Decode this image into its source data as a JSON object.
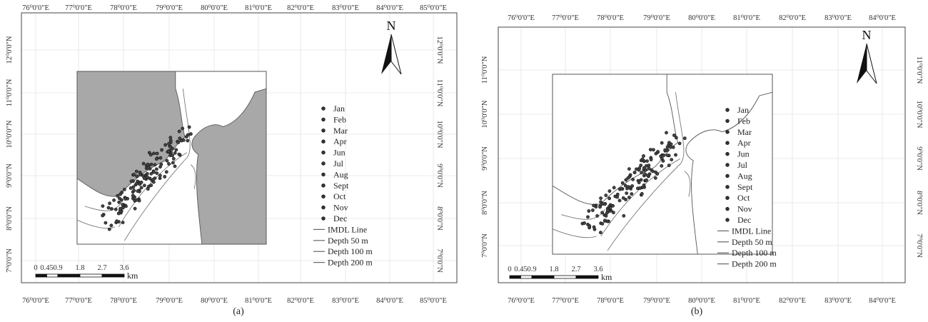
{
  "panels": [
    {
      "caption": "(a)",
      "top_ticks": [
        "76⁰0'0\"E",
        "77⁰0'0\"E",
        "78⁰0'0\"E",
        "79⁰0'0\"E",
        "80⁰0'0\"E",
        "81⁰0'0\"E",
        "82⁰0'0\"E",
        "83⁰0'0\"E",
        "84⁰0'0\"E",
        "85⁰0'0\"E"
      ],
      "bottom_ticks": [
        "76⁰0'0\"E",
        "77⁰0'0\"E",
        "78⁰0'0\"E",
        "79⁰0'0\"E",
        "80⁰0'0\"E",
        "81⁰0'0\"E",
        "82⁰0'0\"E",
        "83⁰0'0\"E",
        "84⁰0'0\"E",
        "85⁰0'0\"E"
      ],
      "left_ticks": [
        "12⁰0'0\"N",
        "11⁰0'0\"N",
        "10⁰0'0\"N",
        "9⁰0'0\"N",
        "8⁰0'0\"N",
        "7⁰0'0\"N"
      ],
      "right_ticks": [
        "12⁰0'0\"N",
        "11⁰0'0\"N",
        "10⁰0'0\"N",
        "9⁰0'0\"N",
        "8⁰0'0\"N",
        "7⁰0'0\"N"
      ],
      "north_label": "N",
      "scale_numbers": [
        "0",
        "0.45",
        "0.9",
        "1.8",
        "2.7",
        "3.6"
      ],
      "scale_unit": "km",
      "land_filled": true,
      "legend": {
        "months": [
          "Jan",
          "Feb",
          "Mar",
          "Apr",
          "Jun",
          "Jul",
          "Aug",
          "Sept",
          "Oct",
          "Nov",
          "Dec"
        ],
        "lines": [
          "IMDL Line",
          "Depth 50 m",
          "Depth 100 m",
          "Depth 200 m"
        ]
      }
    },
    {
      "caption": "(b)",
      "top_ticks": [
        "76⁰0'0\"E",
        "77⁰0'0\"E",
        "78⁰0'0\"E",
        "79⁰0'0\"E",
        "80⁰0'0\"E",
        "81⁰0'0\"E",
        "82⁰0'0\"E",
        "83⁰0'0\"E",
        "84⁰0'0\"E"
      ],
      "bottom_ticks": [
        "76⁰0'0\"E",
        "77⁰0'0\"E",
        "78⁰0'0\"E",
        "79⁰0'0\"E",
        "80⁰0'0\"E",
        "81⁰0'0\"E",
        "82⁰0'0\"E",
        "83⁰0'0\"E",
        "84⁰0'0\"E"
      ],
      "left_ticks": [
        "11⁰0'0\"N",
        "10⁰0'0\"N",
        "9⁰0'0\"N",
        "8⁰0'0\"N",
        "7⁰0'0\"N"
      ],
      "right_ticks": [
        "11⁰0'0\"N",
        "10⁰0'0\"N",
        "9⁰0'0\"N",
        "8⁰0'0\"N",
        "7⁰0'0\"N"
      ],
      "north_label": "N",
      "scale_numbers": [
        "0",
        "0.45",
        "0.9",
        "1.8",
        "2.7",
        "3.6"
      ],
      "scale_unit": "km",
      "land_filled": false,
      "legend": {
        "months": [
          "Jan",
          "Feb",
          "Mar",
          "Apr",
          "Jun",
          "Jul",
          "Aug",
          "Sept",
          "Oct",
          "Nov",
          "Dec"
        ],
        "lines": [
          "IMDL Line",
          "Depth 50 m",
          "Depth 100 m",
          "Depth 200 m"
        ]
      }
    }
  ]
}
